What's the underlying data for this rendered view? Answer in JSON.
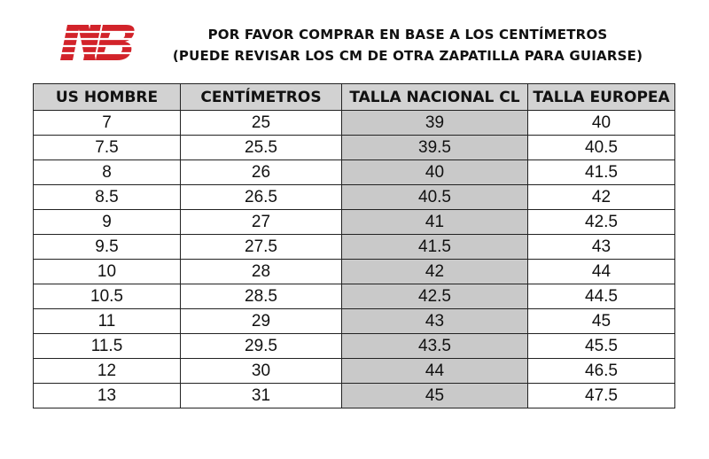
{
  "brand": {
    "logo_text": "NB",
    "logo_color": "#d2232a"
  },
  "heading": {
    "line1": "POR FAVOR COMPRAR EN BASE A LOS CENTÍMETROS",
    "line2": "(PUEDE REVISAR LOS CM DE OTRA ZAPATILLA PARA GUIARSE)"
  },
  "table": {
    "headers": [
      "US HOMBRE",
      "CENTÍMETROS",
      "TALLA NACIONAL CL",
      "TALLA EUROPEA"
    ],
    "rows": [
      [
        "7",
        "25",
        "39",
        "40"
      ],
      [
        "7.5",
        "25.5",
        "39.5",
        "40.5"
      ],
      [
        "8",
        "26",
        "40",
        "41.5"
      ],
      [
        "8.5",
        "26.5",
        "40.5",
        "42"
      ],
      [
        "9",
        "27",
        "41",
        "42.5"
      ],
      [
        "9.5",
        "27.5",
        "41.5",
        "43"
      ],
      [
        "10",
        "28",
        "42",
        "44"
      ],
      [
        "10.5",
        "28.5",
        "42.5",
        "44.5"
      ],
      [
        "11",
        "29",
        "43",
        "45"
      ],
      [
        "11.5",
        "29.5",
        "43.5",
        "45.5"
      ],
      [
        "12",
        "30",
        "44",
        "46.5"
      ],
      [
        "13",
        "31",
        "45",
        "47.5"
      ]
    ],
    "header_bg": "#d2d2d2",
    "highlight_bg": "#c9c9c9"
  }
}
